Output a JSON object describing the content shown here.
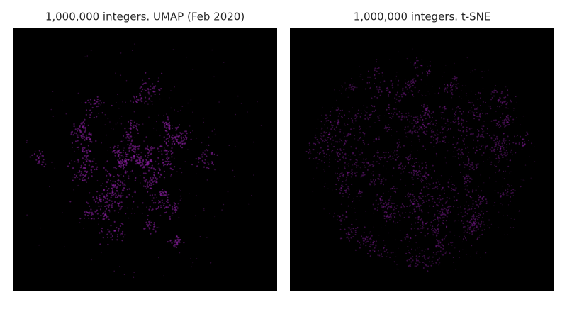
{
  "panels": [
    {
      "title": "1,000,000 integers. UMAP (Feb 2020)"
    },
    {
      "title": "1,000,000 integers. t-SNE"
    }
  ]
}
